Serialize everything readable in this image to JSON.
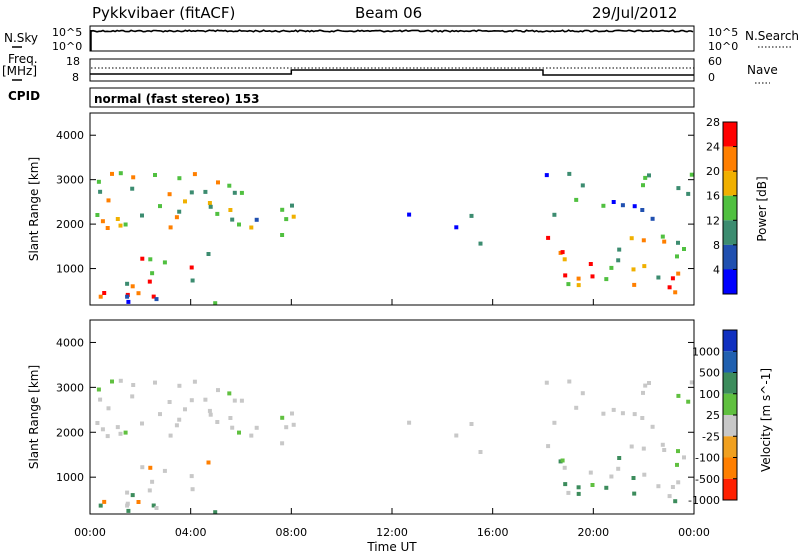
{
  "header": {
    "station": "Pykkvibaer (fitACF)",
    "beam": "Beam 06",
    "date": "29/Jul/2012"
  },
  "top_panels": {
    "nsky_label": "N.Sky",
    "nsearch_label": "N.Search",
    "nsky_ticks": [
      "10^5",
      "10^0"
    ],
    "nsearch_ticks": [
      "10^5",
      "10^0"
    ],
    "freq_label": "Freq.",
    "freq_unit": "[MHz]",
    "freq_ticks": [
      "18",
      "8"
    ],
    "nave_label": "Nave",
    "nave_ticks": [
      "60",
      "0"
    ],
    "cpid_label": "CPID",
    "cpid_text": "normal (fast stereo)  153"
  },
  "chart_data": [
    {
      "type": "heatmap",
      "name": "power",
      "ylabel": "Slant Range [km]",
      "ylim": [
        180,
        4500
      ],
      "yticks": [
        "1000",
        "2000",
        "3000",
        "4000"
      ],
      "xlim": [
        0,
        24
      ],
      "colorbar_label": "Power [dB]",
      "colorbar_ticks": [
        "4",
        "8",
        "12",
        "16",
        "20",
        "24",
        "28"
      ],
      "colors": [
        "#0000ff",
        "#2050b0",
        "#3c8c70",
        "#50c040",
        "#f0b000",
        "#ff7f00",
        "#ff0000"
      ],
      "grid": false
    },
    {
      "type": "heatmap",
      "name": "velocity",
      "ylabel": "Slant Range [km]",
      "ylim": [
        180,
        4500
      ],
      "yticks": [
        "1000",
        "2000",
        "3000",
        "4000"
      ],
      "xlim": [
        0,
        24
      ],
      "xlabel": "Time UT",
      "xticks": [
        "00:00",
        "04:00",
        "08:00",
        "12:00",
        "16:00",
        "20:00",
        "00:00"
      ],
      "colorbar_label": "Velocity [m s^-1]",
      "colorbar_ticks": [
        "1000",
        "500",
        "100",
        "25",
        "-25",
        "-100",
        "-500",
        "-1000"
      ],
      "colors": [
        "#1030c0",
        "#2060b0",
        "#3c8c5c",
        "#60c040",
        "#c8c8c8",
        "#f0a020",
        "#ff7f00",
        "#ff2000"
      ],
      "grid": false
    }
  ]
}
